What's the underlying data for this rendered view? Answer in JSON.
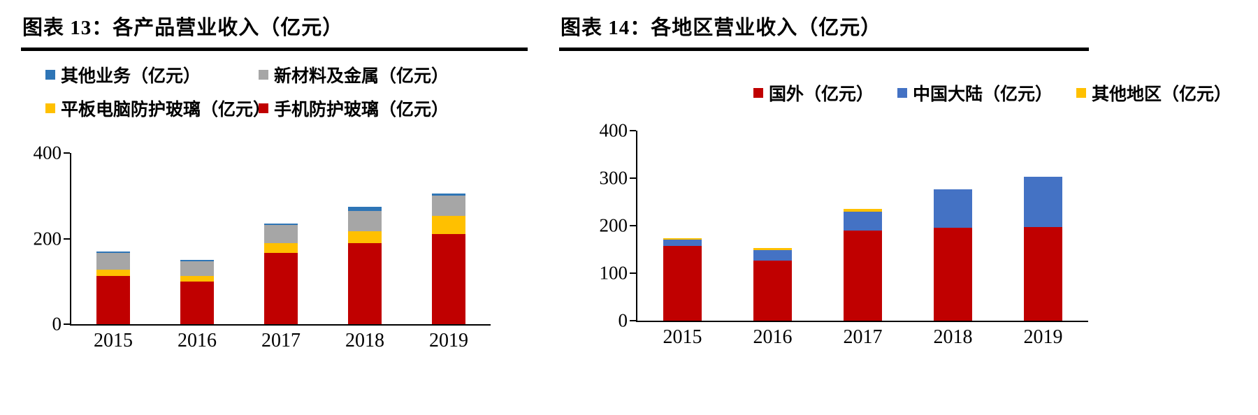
{
  "panels": [
    {
      "title": "图表 13：各产品营业收入（亿元）",
      "legend": [
        {
          "label": "其他业务（亿元）",
          "color": "#2E75B6"
        },
        {
          "label": "新材料及金属（亿元）",
          "color": "#A6A6A6"
        },
        {
          "label": "平板电脑防护玻璃（亿元）",
          "color": "#FFC000"
        },
        {
          "label": "手机防护玻璃（亿元）",
          "color": "#C00000"
        }
      ]
    },
    {
      "title": "图表 14：各地区营业收入（亿元）",
      "legend": [
        {
          "label": "国外（亿元）",
          "color": "#C00000"
        },
        {
          "label": "中国大陆（亿元）",
          "color": "#4472C4"
        },
        {
          "label": "其他地区（亿元）",
          "color": "#FFC000"
        }
      ]
    }
  ],
  "chart_data": [
    {
      "type": "bar",
      "stacked": true,
      "title": "图表 13：各产品营业收入（亿元）",
      "categories": [
        "2015",
        "2016",
        "2017",
        "2018",
        "2019"
      ],
      "series": [
        {
          "name": "手机防护玻璃（亿元）",
          "color": "#C00000",
          "values": [
            113,
            100,
            167,
            190,
            210
          ]
        },
        {
          "name": "平板电脑防护玻璃（亿元）",
          "color": "#FFC000",
          "values": [
            15,
            13,
            23,
            27,
            43
          ]
        },
        {
          "name": "新材料及金属（亿元）",
          "color": "#A6A6A6",
          "values": [
            38,
            34,
            42,
            48,
            47
          ]
        },
        {
          "name": "其他业务（亿元）",
          "color": "#2E75B6",
          "values": [
            4,
            3,
            3,
            10,
            5
          ]
        }
      ],
      "xlabel": "",
      "ylabel": "",
      "ylim": [
        0,
        400
      ],
      "yticks": [
        0,
        200,
        400
      ],
      "grid": false,
      "legend_position": "top"
    },
    {
      "type": "bar",
      "stacked": true,
      "title": "图表 14：各地区营业收入（亿元）",
      "categories": [
        "2015",
        "2016",
        "2017",
        "2018",
        "2019"
      ],
      "series": [
        {
          "name": "国外（亿元）",
          "color": "#C00000",
          "values": [
            158,
            127,
            190,
            195,
            197
          ]
        },
        {
          "name": "中国大陆（亿元）",
          "color": "#4472C4",
          "values": [
            12,
            21,
            40,
            82,
            106
          ]
        },
        {
          "name": "其他地区（亿元）",
          "color": "#FFC000",
          "values": [
            3,
            5,
            5,
            0,
            0
          ]
        }
      ],
      "xlabel": "",
      "ylabel": "",
      "ylim": [
        0,
        400
      ],
      "yticks": [
        0,
        100,
        200,
        300,
        400
      ],
      "grid": false,
      "legend_position": "top"
    }
  ]
}
